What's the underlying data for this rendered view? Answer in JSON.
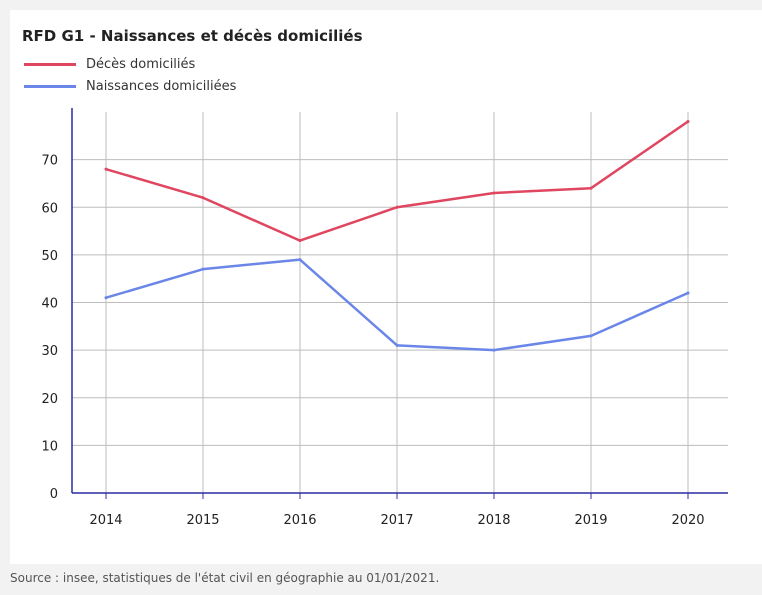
{
  "header": {
    "title": "RFD G1 - Naissances et décès domiciliés"
  },
  "legend": [
    {
      "label": "Décès domiciliés",
      "color": "#e0465f"
    },
    {
      "label": "Naissances domiciliées",
      "color": "#6b86e8"
    }
  ],
  "chart_data": {
    "type": "line",
    "title": "RFD G1 - Naissances et décès domiciliés",
    "xlabel": "",
    "ylabel": "",
    "categories": [
      "2014",
      "2015",
      "2016",
      "2017",
      "2018",
      "2019",
      "2020"
    ],
    "yticks": [
      0,
      10,
      20,
      30,
      40,
      50,
      60,
      70
    ],
    "ylim": [
      0,
      80
    ],
    "grid": true,
    "legend_position": "top-left",
    "series": [
      {
        "name": "Décès domiciliés",
        "color": "#e0465f",
        "values": [
          68,
          62,
          53,
          60,
          63,
          64,
          78
        ]
      },
      {
        "name": "Naissances domiciliées",
        "color": "#6b86e8",
        "values": [
          41,
          47,
          49,
          31,
          30,
          33,
          42
        ]
      }
    ],
    "axis_color": "#2c2ca0",
    "grid_color": "#bdbdbd"
  },
  "footer": {
    "source": "Source : insee, statistiques de l'état civil en géographie au 01/01/2021."
  }
}
